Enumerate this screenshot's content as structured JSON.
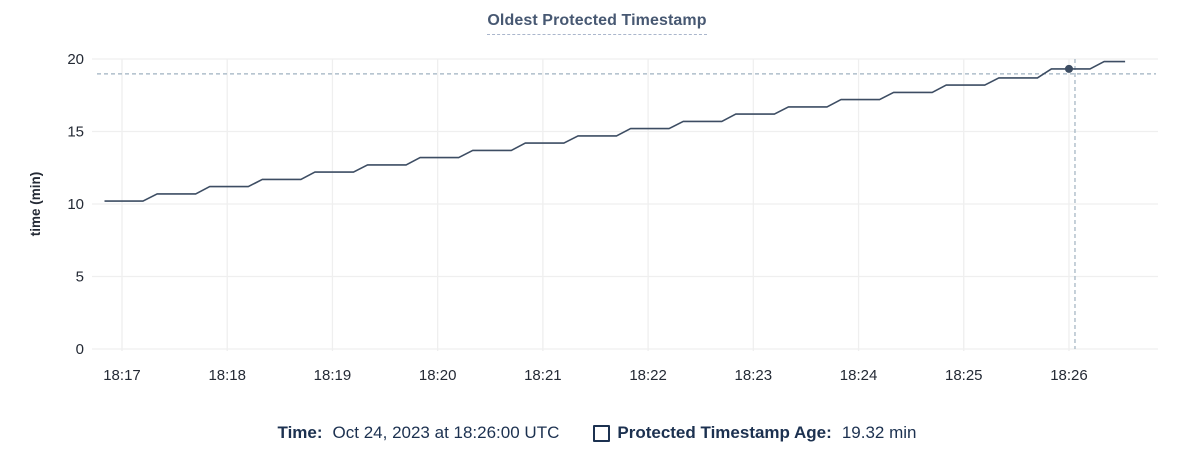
{
  "title": "Oldest Protected Timestamp",
  "colors": {
    "title": "#475872",
    "title_underline": "#aab6cc",
    "line": "#3d4d63",
    "dot": "#3d4d63",
    "grid": "#efefef",
    "tick_text": "#242a35",
    "axis_title_text": "#242a35",
    "crosshair": "#9fb2c0",
    "legend_text": "#1c3150",
    "background": "#ffffff"
  },
  "chart_data": {
    "type": "line",
    "title": "Oldest Protected Timestamp",
    "xlabel": "",
    "ylabel": "time (min)",
    "ylim": [
      0,
      20
    ],
    "yticks": [
      0,
      5,
      10,
      15,
      20
    ],
    "xticks": [
      "18:17",
      "18:18",
      "18:19",
      "18:20",
      "18:21",
      "18:22",
      "18:23",
      "18:24",
      "18:25",
      "18:26"
    ],
    "grid": true,
    "legend_position": "bottom",
    "series": [
      {
        "name": "Protected Timestamp Age",
        "points": [
          [
            "18:16:50",
            10.2
          ],
          [
            "18:17:12",
            10.2
          ],
          [
            "18:17:20",
            10.7
          ],
          [
            "18:17:42",
            10.7
          ],
          [
            "18:17:50",
            11.2
          ],
          [
            "18:18:12",
            11.2
          ],
          [
            "18:18:20",
            11.7
          ],
          [
            "18:18:42",
            11.7
          ],
          [
            "18:18:50",
            12.2
          ],
          [
            "18:19:12",
            12.2
          ],
          [
            "18:19:20",
            12.7
          ],
          [
            "18:19:42",
            12.7
          ],
          [
            "18:19:50",
            13.2
          ],
          [
            "18:20:12",
            13.2
          ],
          [
            "18:20:20",
            13.7
          ],
          [
            "18:20:42",
            13.7
          ],
          [
            "18:20:50",
            14.2
          ],
          [
            "18:21:12",
            14.2
          ],
          [
            "18:21:20",
            14.7
          ],
          [
            "18:21:42",
            14.7
          ],
          [
            "18:21:50",
            15.2
          ],
          [
            "18:22:12",
            15.2
          ],
          [
            "18:22:20",
            15.7
          ],
          [
            "18:22:42",
            15.7
          ],
          [
            "18:22:50",
            16.2
          ],
          [
            "18:23:12",
            16.2
          ],
          [
            "18:23:20",
            16.7
          ],
          [
            "18:23:42",
            16.7
          ],
          [
            "18:23:50",
            17.2
          ],
          [
            "18:24:12",
            17.2
          ],
          [
            "18:24:20",
            17.7
          ],
          [
            "18:24:42",
            17.7
          ],
          [
            "18:24:50",
            18.2
          ],
          [
            "18:25:12",
            18.2
          ],
          [
            "18:25:20",
            18.7
          ],
          [
            "18:25:42",
            18.7
          ],
          [
            "18:25:50",
            19.32
          ],
          [
            "18:26:12",
            19.32
          ],
          [
            "18:26:20",
            19.82
          ],
          [
            "18:26:32",
            19.82
          ]
        ]
      }
    ],
    "hover": {
      "time": "18:26:00",
      "value": 19.32
    }
  },
  "legend": {
    "time_label": "Time:",
    "time_value": "Oct 24, 2023 at 18:26:00 UTC",
    "series_checkbox_icon": "checkbox-unchecked",
    "series_label": "Protected Timestamp Age:",
    "series_value": "19.32 min"
  }
}
